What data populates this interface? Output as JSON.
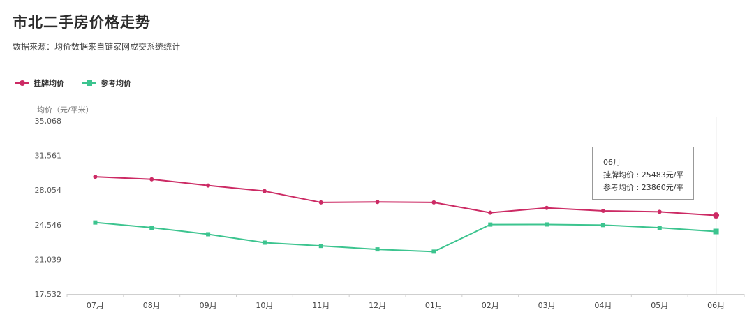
{
  "title": "市北二手房价格走势",
  "subtitle": "数据来源：均价数据来自链家网成交系统统计",
  "legend": [
    {
      "name": "挂牌均价",
      "color": "#cc2a64",
      "marker": "circle"
    },
    {
      "name": "参考均价",
      "color": "#3cc48f",
      "marker": "square"
    }
  ],
  "tooltip": {
    "month": "06月",
    "line1": "挂牌均价 : 25483元/平",
    "line2": "参考均价 : 23860元/平"
  },
  "chart_data": {
    "type": "line",
    "title": "",
    "ylabel": "均价（元/平米）",
    "xlabel": "",
    "categories": [
      "07月",
      "08月",
      "09月",
      "10月",
      "11月",
      "12月",
      "01月",
      "02月",
      "03月",
      "04月",
      "05月",
      "06月"
    ],
    "yticks": [
      "35,068",
      "31,561",
      "28,054",
      "24,546",
      "21,039",
      "17,532"
    ],
    "ylim": [
      17532,
      35068
    ],
    "series": [
      {
        "name": "挂牌均价",
        "color": "#cc2a64",
        "marker": "circle",
        "values": [
          29400,
          29150,
          28520,
          27950,
          26800,
          26850,
          26800,
          25760,
          26250,
          25950,
          25850,
          25483
        ]
      },
      {
        "name": "参考均价",
        "color": "#3cc48f",
        "marker": "square",
        "values": [
          24770,
          24250,
          23580,
          22730,
          22400,
          22050,
          21820,
          24560,
          24570,
          24510,
          24240,
          23860
        ]
      }
    ],
    "highlight_index": 11,
    "grid": false,
    "legend_position": "top-left"
  }
}
